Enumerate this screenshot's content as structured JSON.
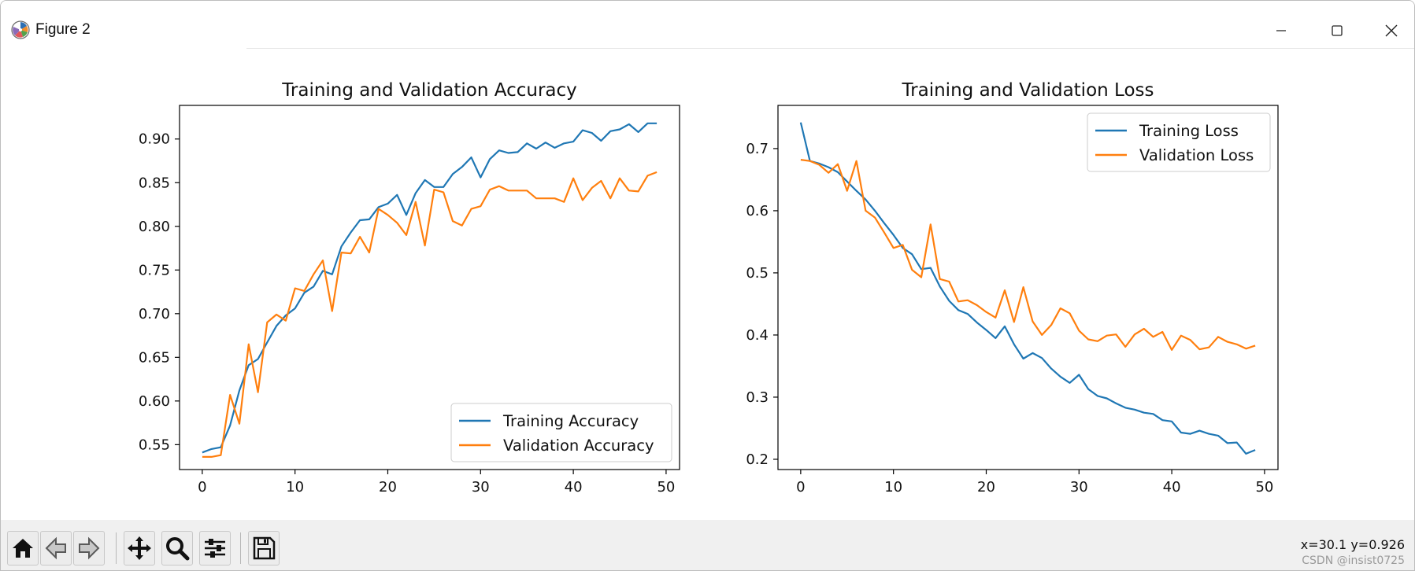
{
  "window": {
    "title": "Figure 2",
    "controls": {
      "minimize": "minimize",
      "maximize": "maximize",
      "close": "close"
    }
  },
  "toolbar": {
    "buttons": [
      {
        "name": "home-button",
        "icon": "home-icon"
      },
      {
        "name": "back-button",
        "icon": "arrow-left-icon"
      },
      {
        "name": "forward-button",
        "icon": "arrow-right-icon"
      },
      {
        "name": "pan-button",
        "icon": "move-icon"
      },
      {
        "name": "zoom-button",
        "icon": "magnifier-icon"
      },
      {
        "name": "configure-subplots-button",
        "icon": "sliders-icon"
      },
      {
        "name": "save-button",
        "icon": "floppy-disk-icon"
      }
    ],
    "coordinates": "x=30.1 y=0.926",
    "watermark": "CSDN @insist0725"
  },
  "colors": {
    "training": "#1f77b4",
    "validation": "#ff7f0e"
  },
  "chart_data": [
    {
      "type": "line",
      "title": "Training and Validation Accuracy",
      "xlabel": "",
      "ylabel": "",
      "xlim": [
        -2.45,
        51.45
      ],
      "ylim": [
        0.5215,
        0.9385
      ],
      "xticks": [
        0,
        10,
        20,
        30,
        40,
        50
      ],
      "xtick_labels": [
        "0",
        "10",
        "20",
        "30",
        "40",
        "50"
      ],
      "yticks": [
        0.55,
        0.6,
        0.65,
        0.7,
        0.75,
        0.8,
        0.85,
        0.9
      ],
      "ytick_labels": [
        "0.55",
        "0.60",
        "0.65",
        "0.70",
        "0.75",
        "0.80",
        "0.85",
        "0.90"
      ],
      "legend_position": "lower right",
      "series": [
        {
          "name": "Training Accuracy",
          "color": "#1f77b4",
          "values": [
            0.541,
            0.545,
            0.547,
            0.572,
            0.612,
            0.641,
            0.648,
            0.667,
            0.686,
            0.698,
            0.706,
            0.724,
            0.731,
            0.749,
            0.745,
            0.777,
            0.793,
            0.807,
            0.808,
            0.822,
            0.826,
            0.836,
            0.813,
            0.838,
            0.853,
            0.845,
            0.845,
            0.86,
            0.868,
            0.879,
            0.856,
            0.877,
            0.887,
            0.884,
            0.885,
            0.895,
            0.889,
            0.896,
            0.89,
            0.895,
            0.897,
            0.91,
            0.907,
            0.898,
            0.909,
            0.911,
            0.917,
            0.908,
            0.918,
            0.918
          ]
        },
        {
          "name": "Validation Accuracy",
          "color": "#ff7f0e",
          "values": [
            0.536,
            0.536,
            0.538,
            0.607,
            0.574,
            0.665,
            0.61,
            0.69,
            0.699,
            0.692,
            0.729,
            0.726,
            0.745,
            0.761,
            0.703,
            0.77,
            0.769,
            0.788,
            0.77,
            0.82,
            0.813,
            0.804,
            0.79,
            0.828,
            0.778,
            0.842,
            0.839,
            0.806,
            0.801,
            0.82,
            0.823,
            0.842,
            0.846,
            0.841,
            0.841,
            0.841,
            0.832,
            0.832,
            0.832,
            0.828,
            0.855,
            0.83,
            0.844,
            0.852,
            0.832,
            0.855,
            0.841,
            0.84,
            0.858,
            0.862
          ]
        }
      ]
    },
    {
      "type": "line",
      "title": "Training and Validation Loss",
      "xlabel": "",
      "ylabel": "",
      "xlim": [
        -2.45,
        51.45
      ],
      "ylim": [
        0.1835,
        0.7695
      ],
      "xticks": [
        0,
        10,
        20,
        30,
        40,
        50
      ],
      "xtick_labels": [
        "0",
        "10",
        "20",
        "30",
        "40",
        "50"
      ],
      "yticks": [
        0.2,
        0.3,
        0.4,
        0.5,
        0.6,
        0.7
      ],
      "ytick_labels": [
        "0.2",
        "0.3",
        "0.4",
        "0.5",
        "0.6",
        "0.7"
      ],
      "legend_position": "upper right",
      "series": [
        {
          "name": "Training Loss",
          "color": "#1f77b4",
          "values": [
            0.742,
            0.68,
            0.676,
            0.67,
            0.662,
            0.647,
            0.632,
            0.618,
            0.6,
            0.58,
            0.561,
            0.54,
            0.53,
            0.506,
            0.508,
            0.478,
            0.455,
            0.44,
            0.434,
            0.42,
            0.408,
            0.395,
            0.414,
            0.385,
            0.362,
            0.371,
            0.363,
            0.346,
            0.333,
            0.323,
            0.336,
            0.313,
            0.302,
            0.298,
            0.29,
            0.283,
            0.28,
            0.275,
            0.273,
            0.263,
            0.261,
            0.243,
            0.241,
            0.246,
            0.241,
            0.238,
            0.226,
            0.227,
            0.209,
            0.215
          ]
        },
        {
          "name": "Validation Loss",
          "color": "#ff7f0e",
          "values": [
            0.682,
            0.68,
            0.674,
            0.661,
            0.675,
            0.632,
            0.68,
            0.6,
            0.589,
            0.565,
            0.54,
            0.545,
            0.505,
            0.493,
            0.578,
            0.49,
            0.486,
            0.454,
            0.456,
            0.448,
            0.437,
            0.428,
            0.472,
            0.421,
            0.477,
            0.422,
            0.4,
            0.416,
            0.443,
            0.435,
            0.407,
            0.393,
            0.39,
            0.399,
            0.401,
            0.381,
            0.401,
            0.41,
            0.397,
            0.405,
            0.376,
            0.399,
            0.392,
            0.377,
            0.38,
            0.397,
            0.389,
            0.385,
            0.378,
            0.383
          ]
        }
      ]
    }
  ]
}
